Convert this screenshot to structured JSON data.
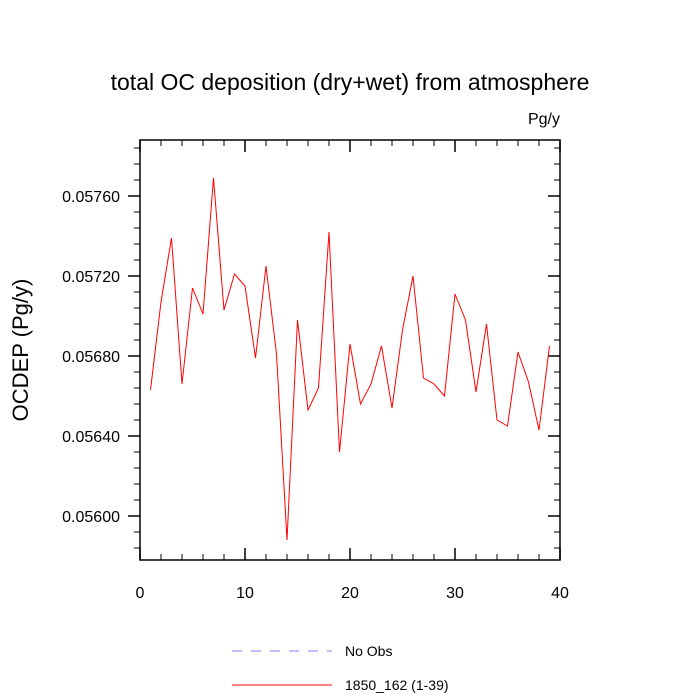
{
  "chart_data": {
    "type": "line",
    "title": "total OC deposition (dry+wet) from atmosphere",
    "units_label": "Pg/y",
    "ylabel": "OCDEP  (Pg/y)",
    "xlabel": "",
    "xlim": [
      0,
      40
    ],
    "ylim": [
      0.05578,
      0.05788
    ],
    "x_ticks": [
      0,
      10,
      20,
      30,
      40
    ],
    "x_tick_labels": [
      "0",
      "10",
      "20",
      "30",
      "40"
    ],
    "y_ticks": [
      0.056,
      0.0564,
      0.0568,
      0.0572,
      0.0576
    ],
    "y_tick_labels": [
      "0.05600",
      "0.05640",
      "0.05680",
      "0.05720",
      "0.05760"
    ],
    "grid": false,
    "legend_position": "bottom",
    "colors": {
      "series": "#ff0000",
      "obs": "#8080ff"
    },
    "series": [
      {
        "name": "1850_162 (1-39)",
        "x": [
          1,
          2,
          3,
          4,
          5,
          6,
          7,
          8,
          9,
          10,
          11,
          12,
          13,
          14,
          15,
          16,
          17,
          18,
          19,
          20,
          21,
          22,
          23,
          24,
          25,
          26,
          27,
          28,
          29,
          30,
          31,
          32,
          33,
          34,
          35,
          36,
          37,
          38,
          39
        ],
        "values": [
          0.05663,
          0.05707,
          0.05739,
          0.05666,
          0.05714,
          0.05701,
          0.05769,
          0.05703,
          0.05721,
          0.05715,
          0.05679,
          0.05725,
          0.05681,
          0.05588,
          0.05698,
          0.05653,
          0.05664,
          0.05742,
          0.05632,
          0.05686,
          0.05656,
          0.05666,
          0.05685,
          0.05654,
          0.05693,
          0.0572,
          0.05669,
          0.05666,
          0.0566,
          0.05711,
          0.05698,
          0.05662,
          0.05696,
          0.05648,
          0.05645,
          0.05682,
          0.05667,
          0.05643,
          0.05685
        ]
      }
    ],
    "legend": [
      {
        "label": "No Obs",
        "style": "dashed"
      },
      {
        "label": "1850_162 (1-39)",
        "style": "solid"
      }
    ]
  }
}
